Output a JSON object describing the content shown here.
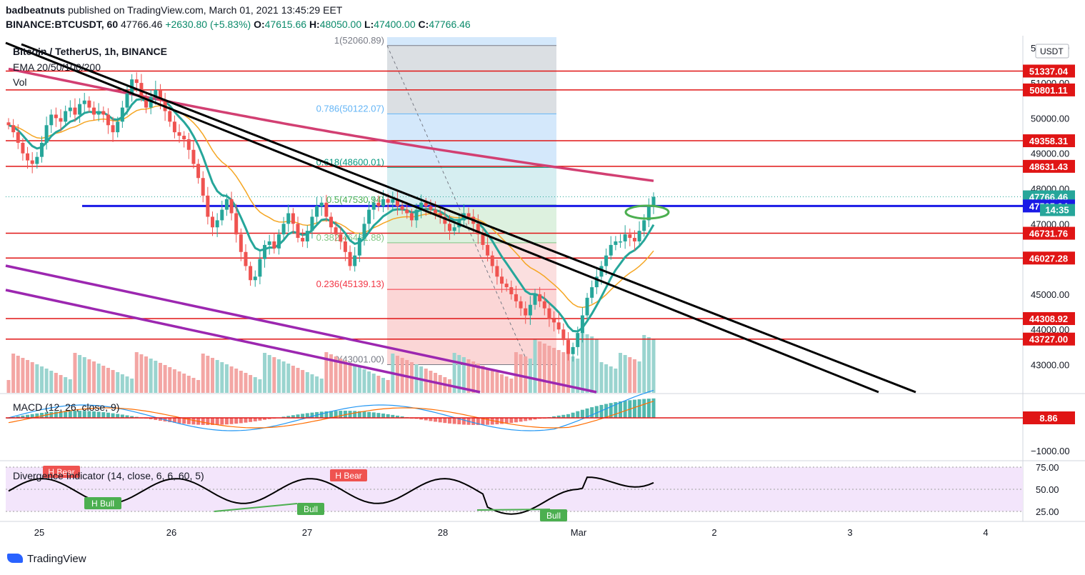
{
  "header": {
    "author": "badbeatnuts",
    "published": "published on TradingView.com, March 01, 2021 13:45:29 EET",
    "symbol": "BINANCE:BTCUSDT, 60",
    "last": "47766.46",
    "change": "+2630.80 (+5.83%)",
    "o_label": "O:",
    "o": "47615.66",
    "h_label": "H:",
    "h": "48050.00",
    "l_label": "L:",
    "l": "47400.00",
    "c_label": "C:",
    "c": "47766.46"
  },
  "legend": {
    "title": "Bitcoin / TetherUS, 1h, BINANCE",
    "ema": "EMA 20/50/100/200",
    "vol": "Vol",
    "macd": "MACD (12, 26, close, 9)",
    "div": "Divergence Indicator (14, close, 6, 6, 60, 5)"
  },
  "brand": "TradingView",
  "colors": {
    "up": "#26a69a",
    "down": "#ef5350",
    "ema20": "#26a69a",
    "ema50": "#f5a623",
    "ema200": "#d23f72",
    "hline": "#e01515",
    "blue": "#1a1ae6",
    "purple": "#9c27b0"
  },
  "chart_data": [
    {
      "type": "candlestick",
      "title": "Bitcoin / TetherUS, 1h, BINANCE",
      "currency": "USDT",
      "x_ticks": [
        "25",
        "26",
        "27",
        "28",
        "Mar",
        "2",
        "3",
        "4"
      ],
      "y_ticks": [
        52000,
        51000,
        50000,
        49000,
        48000,
        47000,
        45000,
        44000,
        43000
      ],
      "ylim": [
        42200,
        52300
      ],
      "price_labels": [
        {
          "value": 51337.04,
          "text": "51337.04",
          "color": "#e01515"
        },
        {
          "value": 50801.11,
          "text": "50801.11",
          "color": "#e01515"
        },
        {
          "value": 49358.31,
          "text": "49358.31",
          "color": "#e01515"
        },
        {
          "value": 48631.43,
          "text": "48631.43",
          "color": "#e01515"
        },
        {
          "value": 47766.46,
          "text": "47766.46",
          "color": "#26a69a"
        },
        {
          "value": 47505.94,
          "text": "47505.94",
          "color": "#1a1ae6"
        },
        {
          "value": 46731.76,
          "text": "46731.76",
          "color": "#e01515"
        },
        {
          "value": 46027.28,
          "text": "46027.28",
          "color": "#e01515"
        },
        {
          "value": 44308.92,
          "text": "44308.92",
          "color": "#e01515"
        },
        {
          "value": 43727.0,
          "text": "43727.00",
          "color": "#e01515"
        }
      ],
      "countdown": "14:35",
      "fib_levels": [
        {
          "ratio": "1",
          "value": 52060.89,
          "label": "1(52060.89)"
        },
        {
          "ratio": "0.786",
          "value": 50122.07,
          "label": "0.786(50122.07)"
        },
        {
          "ratio": "0.618",
          "value": 48600.01,
          "label": "0.618(48600.01)"
        },
        {
          "ratio": "0.5",
          "value": 47530.94,
          "label": "0.5(47530.94)"
        },
        {
          "ratio": "0.382",
          "value": 46461.88,
          "label": "0.382(46461.88)"
        },
        {
          "ratio": "0.236",
          "value": 45139.13,
          "label": "0.236(45139.13)"
        },
        {
          "ratio": "0",
          "value": 43001.0,
          "label": "0(43001.00)"
        }
      ],
      "candles_hourly_close_approx": [
        49800,
        49600,
        49300,
        49000,
        48800,
        48700,
        48900,
        49300,
        49800,
        50100,
        50000,
        49900,
        50200,
        50300,
        50100,
        50400,
        50500,
        50300,
        50100,
        50200,
        50100,
        49800,
        49600,
        49900,
        50300,
        50700,
        51100,
        51000,
        50600,
        50300,
        50600,
        50800,
        50500,
        50200,
        49900,
        49600,
        49500,
        49400,
        49100,
        48700,
        48300,
        47800,
        47200,
        46900,
        47100,
        47400,
        47700,
        47300,
        46700,
        46200,
        45800,
        45400,
        45500,
        46000,
        46400,
        46500,
        46300,
        46700,
        47000,
        47300,
        47000,
        46600,
        46500,
        46800,
        47200,
        47500,
        47600,
        47200,
        46900,
        46700,
        46500,
        46200,
        45800,
        46100,
        46600,
        47000,
        47400,
        47600,
        47500,
        47700,
        47600,
        47700,
        47500,
        47400,
        47300,
        47100,
        47400,
        47600,
        47500,
        47400,
        47300,
        47200,
        47000,
        46800,
        46900,
        47100,
        47300,
        47200,
        47000,
        46700,
        46400,
        46100,
        45800,
        45500,
        45300,
        45200,
        45000,
        44800,
        44600,
        44400,
        44700,
        45000,
        44800,
        44600,
        44300,
        44200,
        44000,
        43700,
        43300,
        43500,
        43900,
        44400,
        44900,
        45200,
        45500,
        45800,
        46100,
        46400,
        46500,
        46500,
        46700,
        46600,
        46500,
        46800,
        47100,
        47500,
        47766
      ]
    },
    {
      "type": "macd",
      "title": "MACD (12, 26, close, 9)",
      "y_ticks": [
        -1000
      ],
      "value_label": "8.86"
    },
    {
      "type": "line",
      "title": "Divergence Indicator (14, close, 6, 6, 60, 5)",
      "y_ticks": [
        75,
        50,
        25
      ],
      "annotations": [
        {
          "text": "H Bear"
        },
        {
          "text": "H Bear"
        },
        {
          "text": "H Bull"
        },
        {
          "text": "Bull"
        },
        {
          "text": "Bull"
        }
      ]
    }
  ]
}
